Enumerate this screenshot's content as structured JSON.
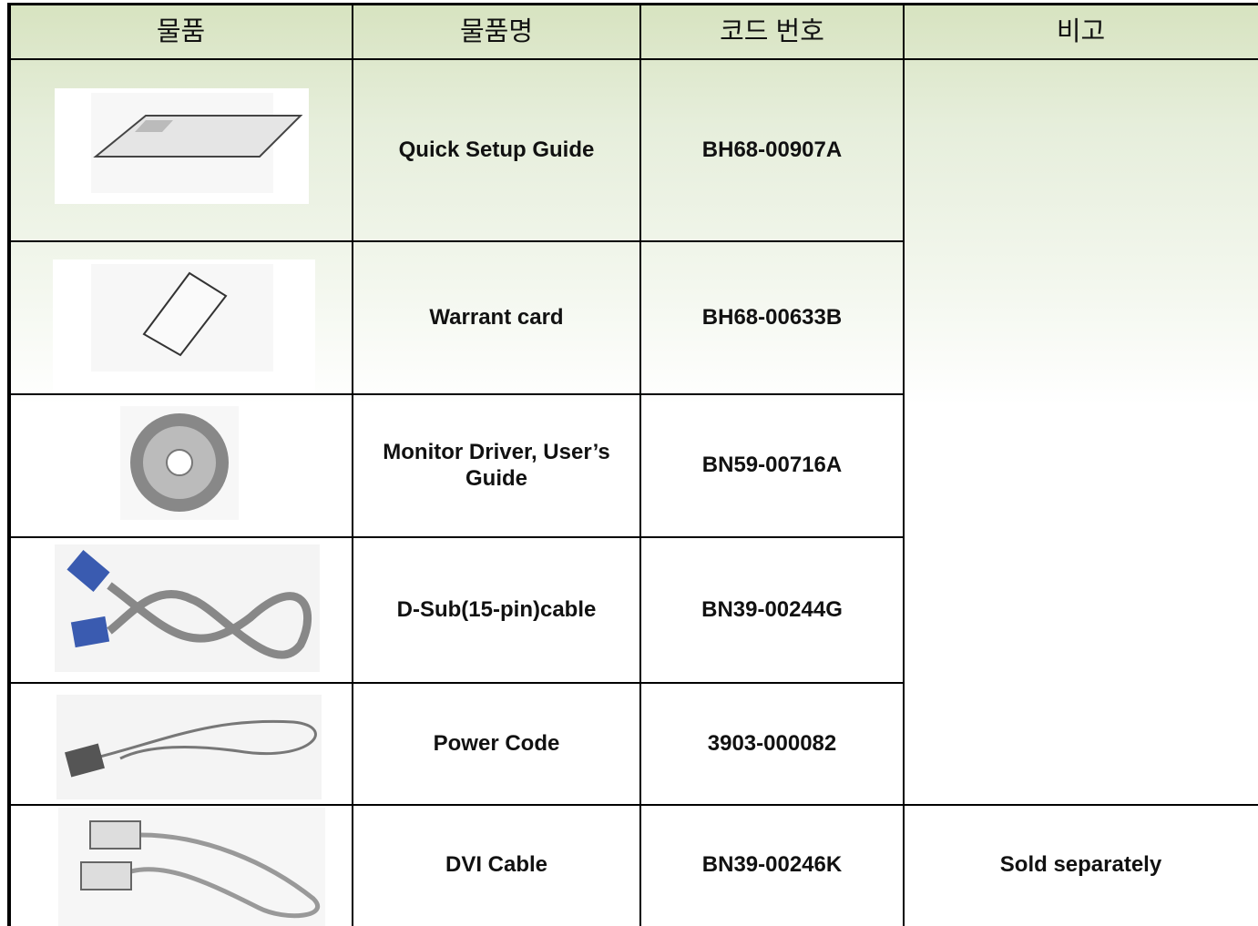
{
  "table": {
    "header": [
      "물품",
      "물품명",
      "코드 번호",
      "비고"
    ],
    "rows": [
      {
        "name": "Quick Setup Guide",
        "code": "BH68-00907A"
      },
      {
        "name": "Warrant card",
        "code": "BH68-00633B"
      },
      {
        "name": "Monitor Driver, User’s Guide",
        "code": "BN59-00716A"
      },
      {
        "name": "D-Sub(15-pin)cable",
        "code": "BN39-00244G"
      },
      {
        "name": "Power Code",
        "code": "3903-000082"
      },
      {
        "name": "DVI Cable",
        "code": "BN39-00246K",
        "remark": "Sold separately"
      }
    ]
  }
}
